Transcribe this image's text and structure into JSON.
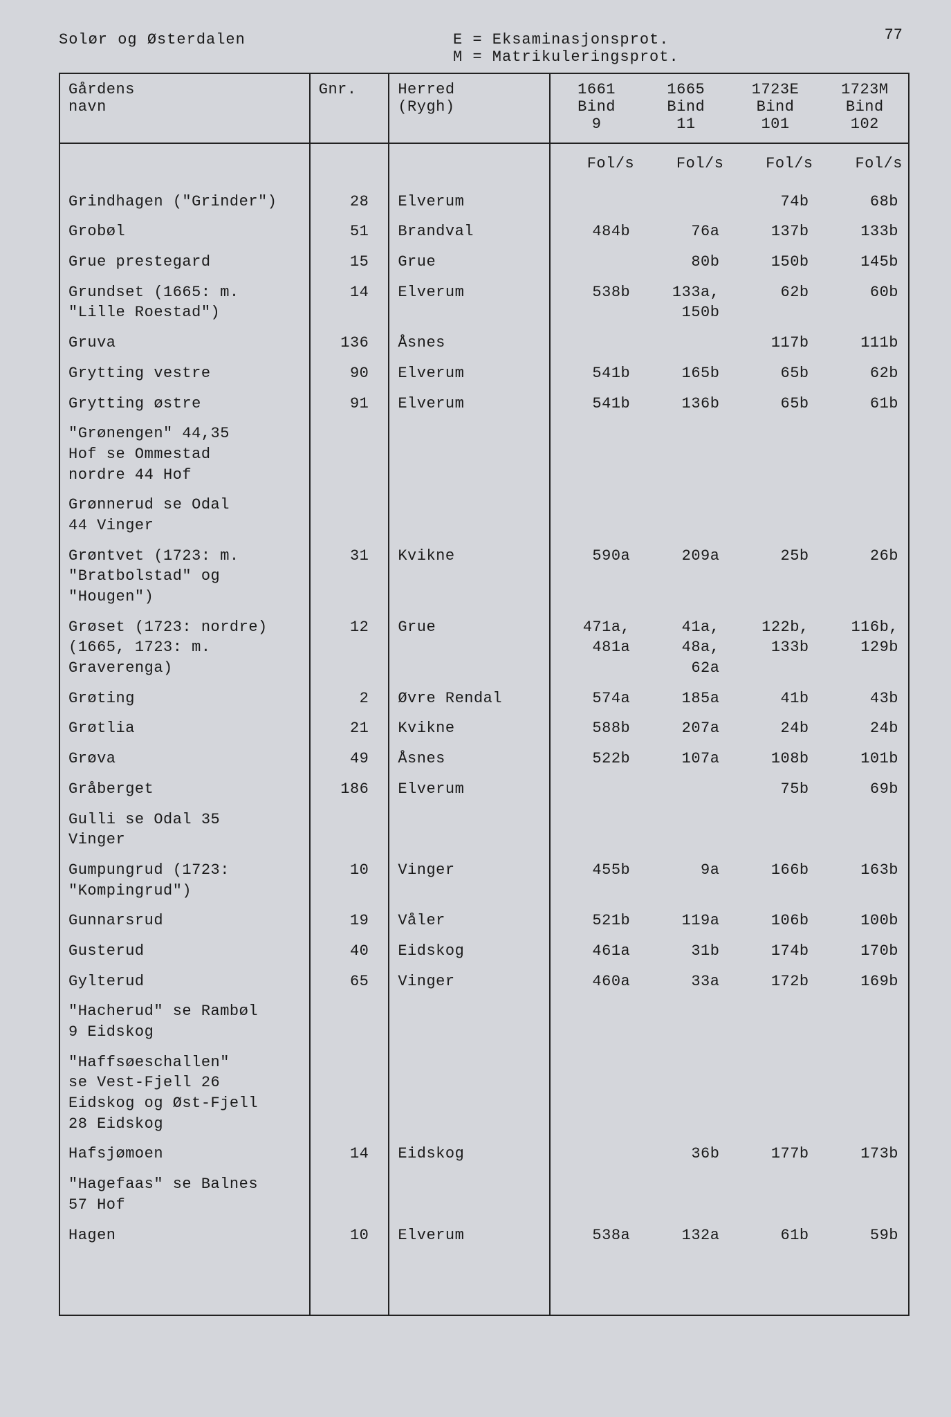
{
  "page_number": "77",
  "header_region": "Solør og Østerdalen",
  "legend_e": "E = Eksaminasjonsprot.",
  "legend_m": "M = Matrikuleringsprot.",
  "columns": {
    "navn_l1": "Gårdens",
    "navn_l2": "navn",
    "gnr": "Gnr.",
    "herred_l1": "Herred",
    "herred_l2": "(Rygh)",
    "y1_l1": "1661",
    "y1_l2": "Bind",
    "y1_l3": "9",
    "y2_l1": "1665",
    "y2_l2": "Bind",
    "y2_l3": "11",
    "y3_l1": "1723E",
    "y3_l2": "Bind",
    "y3_l3": "101",
    "y4_l1": "1723M",
    "y4_l2": "Bind",
    "y4_l3": "102"
  },
  "fols_label": "Fol/s",
  "rows": [
    {
      "navn": "Grindhagen (\"Grinder\")",
      "gnr": "28",
      "herred": "Elverum",
      "c1": "",
      "c2": "",
      "c3": "74b",
      "c4": "68b"
    },
    {
      "navn": "Grobøl",
      "gnr": "51",
      "herred": "Brandval",
      "c1": "484b",
      "c2": "76a",
      "c3": "137b",
      "c4": "133b"
    },
    {
      "navn": "Grue prestegard",
      "gnr": "15",
      "herred": "Grue",
      "c1": "",
      "c2": "80b",
      "c3": "150b",
      "c4": "145b"
    },
    {
      "navn": "Grundset (1665: m.\n\"Lille Roestad\")",
      "gnr": "14",
      "herred": "Elverum",
      "c1": "538b",
      "c2": "133a,\n150b",
      "c3": "62b",
      "c4": "60b"
    },
    {
      "navn": "Gruva",
      "gnr": "136",
      "herred": "Åsnes",
      "c1": "",
      "c2": "",
      "c3": "117b",
      "c4": "111b"
    },
    {
      "navn": "Grytting vestre",
      "gnr": "90",
      "herred": "Elverum",
      "c1": "541b",
      "c2": "165b",
      "c3": "65b",
      "c4": "62b"
    },
    {
      "navn": "Grytting østre",
      "gnr": "91",
      "herred": "Elverum",
      "c1": "541b",
      "c2": "136b",
      "c3": "65b",
      "c4": "61b"
    },
    {
      "navn": "\"Grønengen\" 44,35\nHof se Ommestad\nnordre 44 Hof",
      "gnr": "",
      "herred": "",
      "c1": "",
      "c2": "",
      "c3": "",
      "c4": ""
    },
    {
      "navn": "Grønnerud se Odal\n44 Vinger",
      "gnr": "",
      "herred": "",
      "c1": "",
      "c2": "",
      "c3": "",
      "c4": ""
    },
    {
      "navn": "Grøntvet (1723: m.\n\"Bratbolstad\" og\n\"Hougen\")",
      "gnr": "31",
      "herred": "Kvikne",
      "c1": "590a",
      "c2": "209a",
      "c3": "25b",
      "c4": "26b"
    },
    {
      "navn": "Grøset (1723: nordre)\n(1665, 1723: m.\nGraverenga)",
      "gnr": "12",
      "herred": "Grue",
      "c1": "471a,\n481a",
      "c2": "41a,\n48a,\n62a",
      "c3": "122b,\n133b",
      "c4": "116b,\n129b"
    },
    {
      "navn": "Grøting",
      "gnr": "2",
      "herred": "Øvre Rendal",
      "c1": "574a",
      "c2": "185a",
      "c3": "41b",
      "c4": "43b"
    },
    {
      "navn": "Grøtlia",
      "gnr": "21",
      "herred": "Kvikne",
      "c1": "588b",
      "c2": "207a",
      "c3": "24b",
      "c4": "24b"
    },
    {
      "navn": "Grøva",
      "gnr": "49",
      "herred": "Åsnes",
      "c1": "522b",
      "c2": "107a",
      "c3": "108b",
      "c4": "101b"
    },
    {
      "navn": "Gråberget",
      "gnr": "186",
      "herred": "Elverum",
      "c1": "",
      "c2": "",
      "c3": "75b",
      "c4": "69b"
    },
    {
      "navn": "Gulli se Odal 35\nVinger",
      "gnr": "",
      "herred": "",
      "c1": "",
      "c2": "",
      "c3": "",
      "c4": ""
    },
    {
      "navn": "Gumpungrud (1723:\n\"Kompingrud\")",
      "gnr": "10",
      "herred": "Vinger",
      "c1": "455b",
      "c2": "9a",
      "c3": "166b",
      "c4": "163b"
    },
    {
      "navn": "Gunnarsrud",
      "gnr": "19",
      "herred": "Våler",
      "c1": "521b",
      "c2": "119a",
      "c3": "106b",
      "c4": "100b"
    },
    {
      "navn": "Gusterud",
      "gnr": "40",
      "herred": "Eidskog",
      "c1": "461a",
      "c2": "31b",
      "c3": "174b",
      "c4": "170b"
    },
    {
      "navn": "Gylterud",
      "gnr": "65",
      "herred": "Vinger",
      "c1": "460a",
      "c2": "33a",
      "c3": "172b",
      "c4": "169b"
    },
    {
      "navn": "\"Hacherud\" se Rambøl\n9 Eidskog",
      "gnr": "",
      "herred": "",
      "c1": "",
      "c2": "",
      "c3": "",
      "c4": ""
    },
    {
      "navn": "\"Haffsøeschallen\"\nse Vest-Fjell 26\nEidskog og Øst-Fjell\n28 Eidskog",
      "gnr": "",
      "herred": "",
      "c1": "",
      "c2": "",
      "c3": "",
      "c4": ""
    },
    {
      "navn": "Hafsjømoen",
      "gnr": "14",
      "herred": "Eidskog",
      "c1": "",
      "c2": "36b",
      "c3": "177b",
      "c4": "173b"
    },
    {
      "navn": "\"Hagefaas\" se Balnes\n57 Hof",
      "gnr": "",
      "herred": "",
      "c1": "",
      "c2": "",
      "c3": "",
      "c4": ""
    },
    {
      "navn": "Hagen",
      "gnr": "10",
      "herred": "Elverum",
      "c1": "538a",
      "c2": "132a",
      "c3": "61b",
      "c4": "59b"
    }
  ]
}
